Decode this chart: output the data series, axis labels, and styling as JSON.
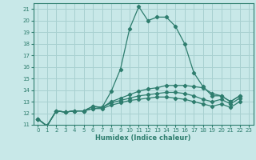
{
  "xlabel": "Humidex (Indice chaleur)",
  "background_color": "#c8e8e8",
  "grid_color": "#a8d0d0",
  "line_color": "#2e7d6e",
  "xlim": [
    -0.5,
    23.5
  ],
  "ylim": [
    11,
    21.5
  ],
  "yticks": [
    11,
    12,
    13,
    14,
    15,
    16,
    17,
    18,
    19,
    20,
    21
  ],
  "xticks": [
    0,
    1,
    2,
    3,
    4,
    5,
    6,
    7,
    8,
    9,
    10,
    11,
    12,
    13,
    14,
    15,
    16,
    17,
    18,
    19,
    20,
    21,
    22,
    23
  ],
  "series": [
    [
      11.5,
      10.9,
      12.2,
      12.1,
      12.2,
      12.2,
      12.6,
      12.5,
      13.9,
      15.8,
      19.3,
      21.2,
      20.0,
      20.3,
      20.3,
      19.5,
      18.0,
      15.5,
      14.3,
      13.5,
      13.5,
      13.0,
      13.5,
      null
    ],
    [
      11.5,
      10.9,
      12.2,
      12.1,
      12.2,
      12.2,
      12.6,
      12.5,
      13.0,
      13.3,
      13.6,
      13.9,
      14.1,
      14.2,
      14.4,
      14.4,
      14.4,
      14.3,
      14.2,
      13.7,
      13.5,
      13.0,
      13.5,
      null
    ],
    [
      11.5,
      10.9,
      12.2,
      12.1,
      12.2,
      12.2,
      12.4,
      12.5,
      12.9,
      13.1,
      13.3,
      13.5,
      13.6,
      13.7,
      13.8,
      13.8,
      13.7,
      13.5,
      13.2,
      13.0,
      13.2,
      12.8,
      13.3,
      null
    ],
    [
      11.5,
      10.9,
      12.2,
      12.1,
      12.2,
      12.2,
      12.4,
      12.4,
      12.7,
      12.9,
      13.1,
      13.2,
      13.3,
      13.4,
      13.4,
      13.3,
      13.2,
      13.0,
      12.8,
      12.6,
      12.8,
      12.5,
      13.0,
      null
    ]
  ]
}
